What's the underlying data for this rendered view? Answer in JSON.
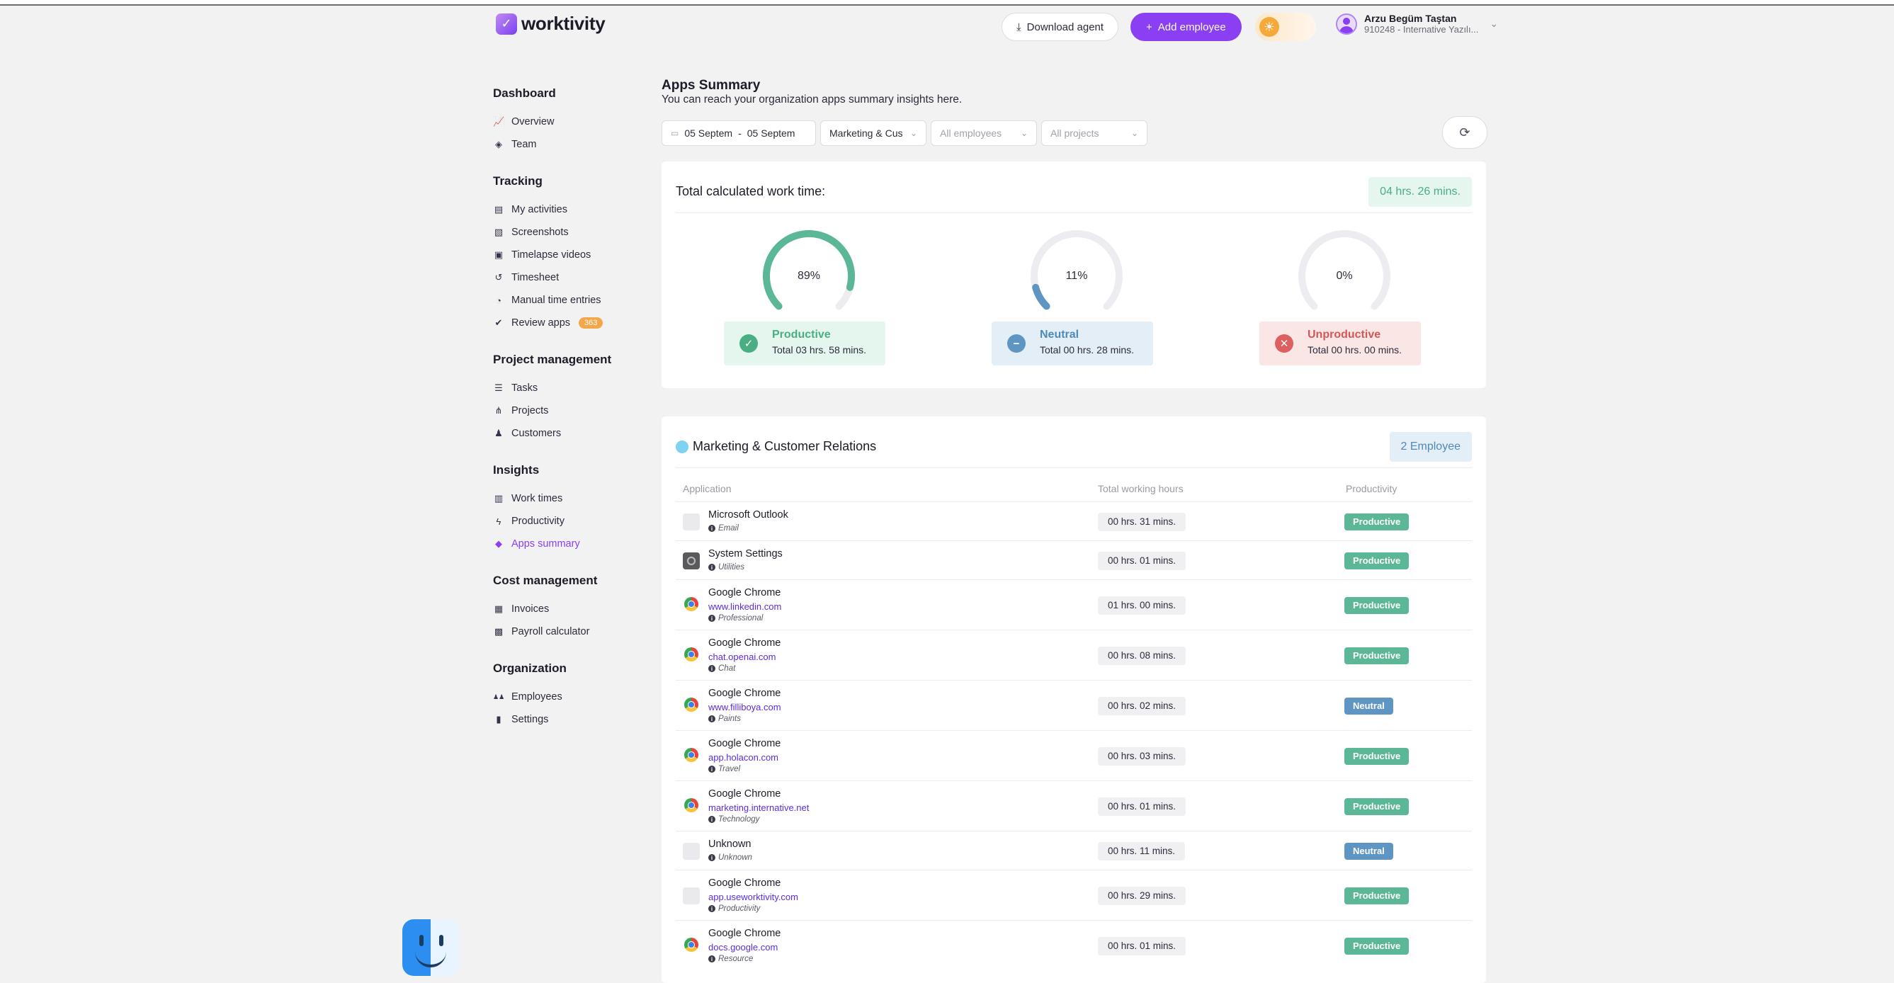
{
  "header": {
    "logo_text": "worktivity",
    "download_label": "Download agent",
    "add_employee_label": "Add employee",
    "user_name": "Arzu Begüm Taştan",
    "user_sub": "910248 - Internative Yazılı..."
  },
  "sidebar": {
    "sections": [
      {
        "title": "Dashboard",
        "items": [
          {
            "label": "Overview",
            "icon": "chart-line-icon"
          },
          {
            "label": "Team",
            "icon": "layers-icon"
          }
        ]
      },
      {
        "title": "Tracking",
        "items": [
          {
            "label": "My activities",
            "icon": "id-card-icon"
          },
          {
            "label": "Screenshots",
            "icon": "images-icon"
          },
          {
            "label": "Timelapse videos",
            "icon": "video-icon"
          },
          {
            "label": "Timesheet",
            "icon": "history-icon"
          },
          {
            "label": "Manual time entries",
            "icon": "stopwatch-icon"
          },
          {
            "label": "Review apps",
            "icon": "check-circle-icon",
            "badge": "363"
          }
        ]
      },
      {
        "title": "Project management",
        "items": [
          {
            "label": "Tasks",
            "icon": "list-icon"
          },
          {
            "label": "Projects",
            "icon": "sitemap-icon"
          },
          {
            "label": "Customers",
            "icon": "user-tie-icon"
          }
        ]
      },
      {
        "title": "Insights",
        "items": [
          {
            "label": "Work times",
            "icon": "business-time-icon"
          },
          {
            "label": "Productivity",
            "icon": "bolt-icon"
          },
          {
            "label": "Apps summary",
            "icon": "shapes-icon",
            "active": true
          }
        ]
      },
      {
        "title": "Cost management",
        "items": [
          {
            "label": "Invoices",
            "icon": "invoice-icon"
          },
          {
            "label": "Payroll calculator",
            "icon": "calculator-icon"
          }
        ]
      },
      {
        "title": "Organization",
        "items": [
          {
            "label": "Employees",
            "icon": "users-icon"
          },
          {
            "label": "Settings",
            "icon": "building-icon"
          }
        ]
      }
    ]
  },
  "main": {
    "title": "Apps Summary",
    "subtitle": "You can reach your organization apps summary insights here.",
    "filters": {
      "date_start": "05 Septem",
      "date_sep": "-",
      "date_end": "05 Septem",
      "department": "Marketing & Cus",
      "employees_placeholder": "All employees",
      "projects_placeholder": "All projects"
    },
    "summary": {
      "title": "Total calculated work time:",
      "total": "04 hrs. 26 mins.",
      "gauges": [
        {
          "percent": 89,
          "label": "89%",
          "status": "Productive",
          "total": "Total 03 hrs. 58 mins.",
          "color": "#5bb796"
        },
        {
          "percent": 11,
          "label": "11%",
          "status": "Neutral",
          "total": "Total 00 hrs. 28 mins.",
          "color": "#5f95c2"
        },
        {
          "percent": 0,
          "label": "0%",
          "status": "Unproductive",
          "total": "Total 00 hrs. 00 mins.",
          "color": "#dd5f5f"
        }
      ]
    },
    "department": {
      "name": "Marketing & Customer Relations",
      "employees": "2 Employee",
      "columns": {
        "application": "Application",
        "hours": "Total working hours",
        "productivity": "Productivity"
      },
      "rows": [
        {
          "app": "Microsoft Outlook",
          "url": "",
          "category": "Email",
          "hours": "00 hrs. 31 mins.",
          "productivity": "Productive",
          "icon": "blank"
        },
        {
          "app": "System Settings",
          "url": "",
          "category": "Utilities",
          "hours": "00 hrs. 01 mins.",
          "productivity": "Productive",
          "icon": "settings"
        },
        {
          "app": "Google Chrome",
          "url": "www.linkedin.com",
          "category": "Professional",
          "hours": "01 hrs. 00 mins.",
          "productivity": "Productive",
          "icon": "chrome"
        },
        {
          "app": "Google Chrome",
          "url": "chat.openai.com",
          "category": "Chat",
          "hours": "00 hrs. 08 mins.",
          "productivity": "Productive",
          "icon": "chrome"
        },
        {
          "app": "Google Chrome",
          "url": "www.filliboya.com",
          "category": "Paints",
          "hours": "00 hrs. 02 mins.",
          "productivity": "Neutral",
          "icon": "chrome"
        },
        {
          "app": "Google Chrome",
          "url": "app.holacon.com",
          "category": "Travel",
          "hours": "00 hrs. 03 mins.",
          "productivity": "Productive",
          "icon": "chrome"
        },
        {
          "app": "Google Chrome",
          "url": "marketing.internative.net",
          "category": "Technology",
          "hours": "00 hrs. 01 mins.",
          "productivity": "Productive",
          "icon": "chrome"
        },
        {
          "app": "Unknown",
          "url": "",
          "category": "Unknown",
          "hours": "00 hrs. 11 mins.",
          "productivity": "Neutral",
          "icon": "blank"
        },
        {
          "app": "Google Chrome",
          "url": "app.useworktivity.com",
          "category": "Productivity",
          "hours": "00 hrs. 29 mins.",
          "productivity": "Productive",
          "icon": "blank"
        },
        {
          "app": "Google Chrome",
          "url": "docs.google.com",
          "category": "Resource",
          "hours": "00 hrs. 01 mins.",
          "productivity": "Productive",
          "icon": "chrome"
        }
      ]
    }
  }
}
